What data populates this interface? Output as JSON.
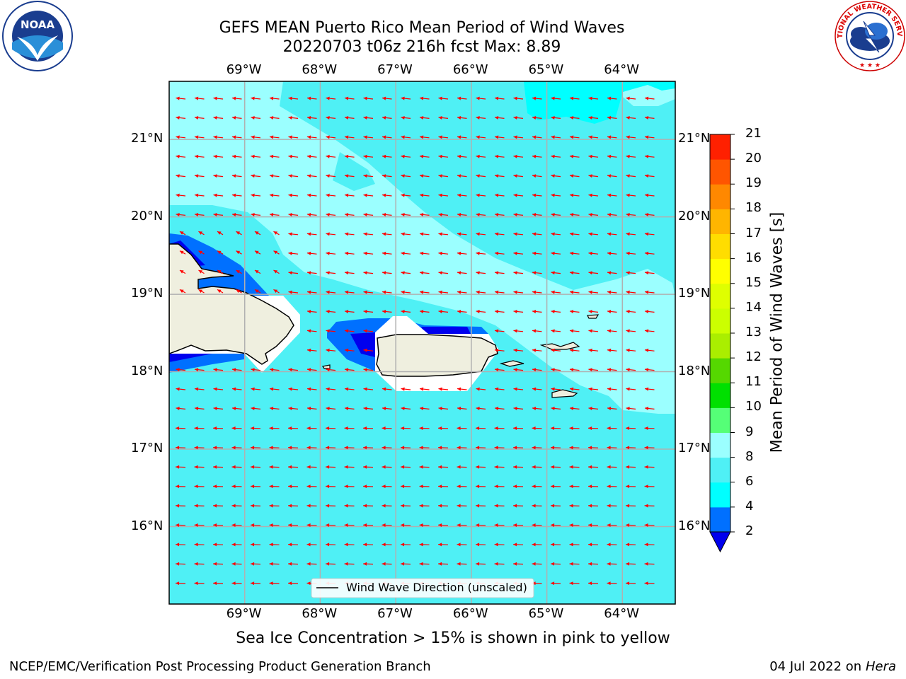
{
  "header": {
    "title_line1": "GEFS MEAN Puerto Rico Mean Period of Wind Waves",
    "title_line2": "20220703 t06z 216h fcst   Max: 8.89"
  },
  "logos": {
    "left": {
      "name": "noaa-logo",
      "text": "NOAA",
      "ring_text": "NATIONAL OCEANIC AND ATMOSPHERIC ADMINISTRATION · U.S. DEPARTMENT OF COMMERCE"
    },
    "right": {
      "name": "national-weather-service-logo",
      "ring_text": "NATIONAL WEATHER SERVICE"
    }
  },
  "map": {
    "lon_labels": [
      "69°W",
      "68°W",
      "67°W",
      "66°W",
      "65°W",
      "64°W"
    ],
    "lat_labels": [
      "21°N",
      "20°N",
      "19°N",
      "18°N",
      "17°N",
      "16°N"
    ],
    "lon_extent": [
      -70.0,
      -63.3
    ],
    "lat_extent": [
      15.0,
      21.75
    ],
    "legend_label": "Wind Wave Direction (unscaled)",
    "vector_color": "#ff0000",
    "land_color": "#efefdf",
    "grid": true
  },
  "colorbar": {
    "label": "Mean Period of Wind Waves [s]",
    "ticks": [
      "21",
      "20",
      "19",
      "18",
      "17",
      "16",
      "15",
      "14",
      "13",
      "12",
      "11",
      "10",
      "9",
      "8",
      "6",
      "4",
      "2"
    ],
    "levels": [
      2,
      4,
      6,
      8,
      9,
      10,
      11,
      12,
      13,
      14,
      15,
      16,
      17,
      18,
      19,
      20,
      21
    ],
    "colors": [
      "#0000ee",
      "#0070ff",
      "#00ffff",
      "#4ff0f5",
      "#9bffff",
      "#55ff77",
      "#00e000",
      "#55d800",
      "#aaee00",
      "#ccff00",
      "#dfff00",
      "#ffff00",
      "#ffdd00",
      "#ffb500",
      "#ff8800",
      "#ff5500",
      "#ff2000",
      "#ff0000"
    ],
    "extend": "min"
  },
  "footer": {
    "sea_ice_note": "Sea Ice Concentration > 15% is shown in pink to yellow",
    "branch": "NCEP/EMC/Verification Post Processing Product Generation Branch",
    "date": "04 Jul 2022 on",
    "machine": "Hera"
  }
}
